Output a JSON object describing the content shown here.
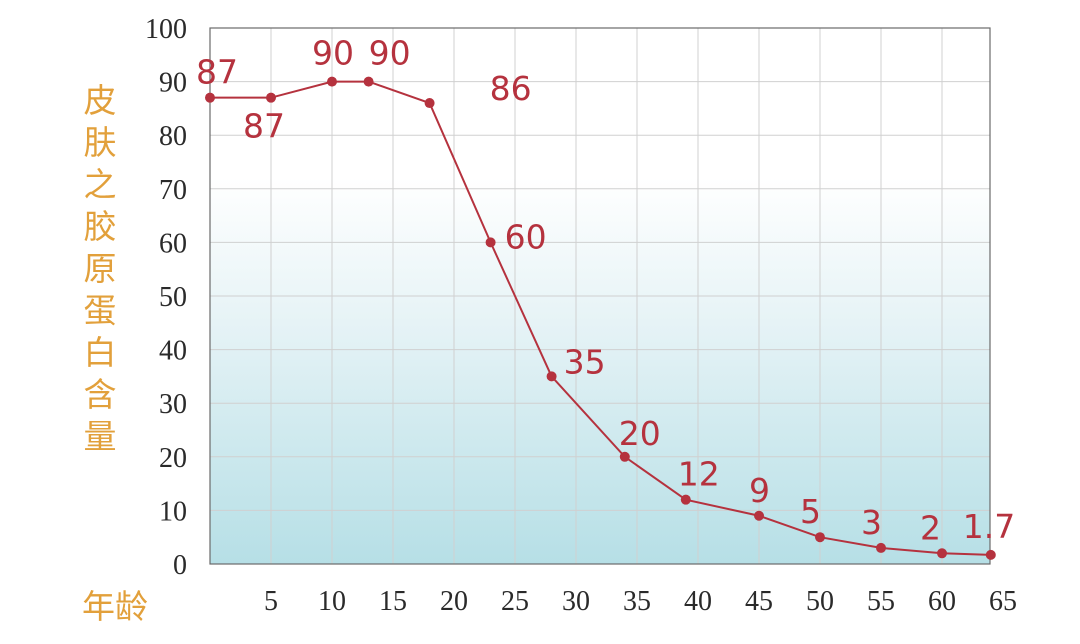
{
  "chart_data": {
    "type": "line",
    "ylabel": "皮肤之胶原蛋白含量",
    "xlabel": "年龄",
    "ylim": [
      0,
      100
    ],
    "yticks": [
      "0",
      "10",
      "20",
      "30",
      "40",
      "50",
      "60",
      "70",
      "80",
      "90",
      "100"
    ],
    "xticks": [
      "5",
      "10",
      "15",
      "20",
      "25",
      "30",
      "35",
      "40",
      "45",
      "50",
      "55",
      "60",
      "65"
    ],
    "grid": true,
    "colors": {
      "line": "#b5323e",
      "bg_top": "#ffffff",
      "bg_bottom": "#b6dfe6",
      "axis_title": "#e2a03b"
    },
    "x": [
      0,
      5,
      10,
      13,
      18,
      23,
      28,
      34,
      39,
      45,
      50,
      55,
      60,
      64
    ],
    "values": [
      87,
      87,
      90,
      90,
      86,
      60,
      35,
      20,
      12,
      9,
      5,
      3,
      2,
      1.7
    ],
    "labels": [
      "87",
      "87",
      "90",
      "90",
      "86",
      "60",
      "35",
      "20",
      "12",
      "9",
      "5",
      "3",
      "2",
      "1.7"
    ]
  }
}
